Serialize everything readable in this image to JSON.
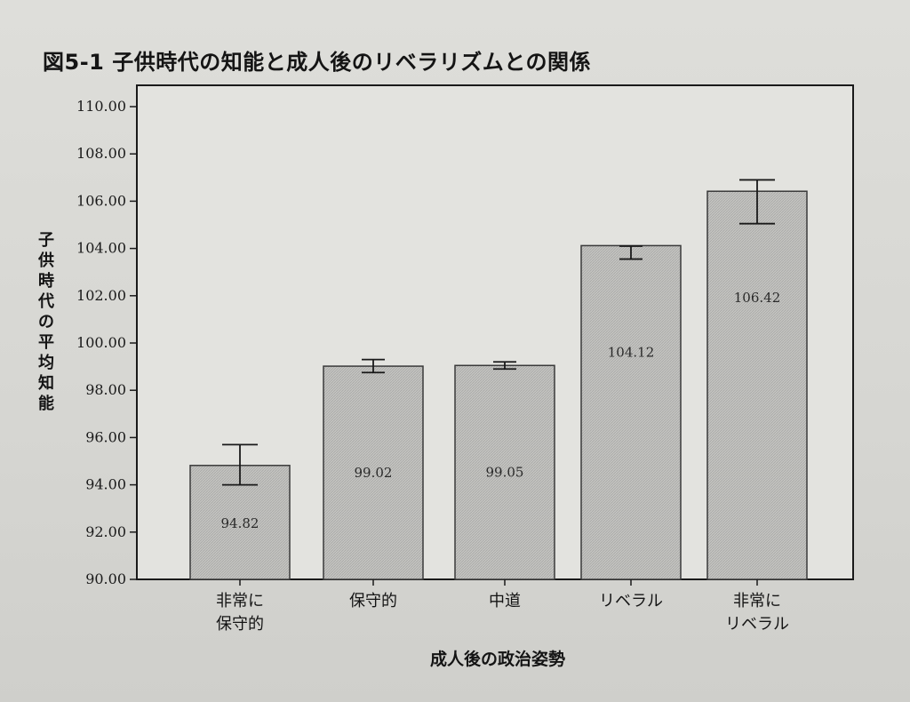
{
  "figure": {
    "title": "図5-1  子供時代の知能と成人後のリベラリズムとの関係"
  },
  "chart_data": {
    "type": "bar",
    "title": "図5-1  子供時代の知能と成人後のリベラリズムとの関係",
    "xlabel": "成人後の政治姿勢",
    "ylabel": "子供時代の平均知能",
    "ylim": [
      90,
      110
    ],
    "yticks": [
      "90.00",
      "92.00",
      "94.00",
      "96.00",
      "98.00",
      "100.00",
      "102.00",
      "104.00",
      "106.00",
      "108.00",
      "110.00"
    ],
    "categories": [
      [
        "非常に",
        "保守的"
      ],
      [
        "保守的"
      ],
      [
        "中道"
      ],
      [
        "リベラル"
      ],
      [
        "非常に",
        "リベラル"
      ]
    ],
    "values": [
      94.82,
      99.02,
      99.05,
      104.12,
      106.42
    ],
    "value_labels": [
      "94.82",
      "99.02",
      "99.05",
      "104.12",
      "106.42"
    ],
    "error_low": [
      94.0,
      98.75,
      98.9,
      103.55,
      105.05
    ],
    "error_high": [
      95.7,
      99.3,
      99.2,
      104.1,
      106.9
    ],
    "grid": false,
    "bar_color": "#bdbdbb",
    "frame_color": "#1a1a1a"
  }
}
